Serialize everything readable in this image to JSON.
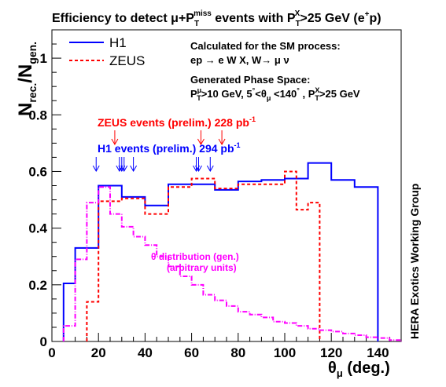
{
  "chart_data": {
    "type": "line",
    "title": "Efficiency to detect μ+Pₜᵐⁱˢˢ events with Pₜˣ>25 GeV (e⁺p)",
    "title_parts": {
      "main": "Efficiency to detect μ+P",
      "sub1": "T",
      "sup1": "miss",
      "mid": " events with P",
      "sub2": "T",
      "sup2": "X",
      "end": ">25 GeV (e",
      "sup3": "+",
      "tail": "p)"
    },
    "xlabel": "θμ (deg.)",
    "xlabel_parts": {
      "main": "θ",
      "sub": "μ",
      "tail": " (deg.)"
    },
    "ylabel": "N rec./N gen.",
    "ylabel_parts": {
      "n1": "N",
      "sub1": "rec.",
      "slash": "/N",
      "sub2": "gen."
    },
    "xlim": [
      0,
      150
    ],
    "ylim": [
      0,
      1.1
    ],
    "x_ticks": [
      0,
      20,
      40,
      60,
      80,
      100,
      120,
      140
    ],
    "y_ticks": [
      0,
      0.2,
      0.4,
      0.6,
      0.8,
      1
    ],
    "x_tick_labels": [
      "0",
      "20",
      "40",
      "60",
      "80",
      "100",
      "120",
      "140"
    ],
    "y_tick_labels": [
      "0",
      "0.2",
      "0.4",
      "0.6",
      "0.8",
      "1"
    ],
    "legend_position": "top-left",
    "series": [
      {
        "name": "H1",
        "color": "#0000ff",
        "style": "solid",
        "edges": [
          5,
          10,
          20,
          30,
          40,
          50,
          60,
          70,
          80,
          90,
          100,
          110,
          120,
          130,
          140
        ],
        "values": [
          0.205,
          0.33,
          0.55,
          0.51,
          0.48,
          0.555,
          0.555,
          0.535,
          0.565,
          0.57,
          0.575,
          0.63,
          0.57,
          0.545
        ]
      },
      {
        "name": "ZEUS",
        "color": "#ff0000",
        "style": "dashed",
        "edges": [
          15,
          20,
          30,
          40,
          50,
          60,
          70,
          80,
          90,
          100,
          105,
          110,
          115
        ],
        "values": [
          0.14,
          0.495,
          0.505,
          0.45,
          0.545,
          0.575,
          0.54,
          0.555,
          0.555,
          0.6,
          0.465,
          0.49
        ]
      },
      {
        "name": "θ distribution (gen.)",
        "color": "#ff00ff",
        "style": "dashdot",
        "edges": [
          5,
          10,
          15,
          20,
          25,
          30,
          35,
          40,
          45,
          50,
          55,
          60,
          65,
          70,
          75,
          80,
          85,
          90,
          95,
          100,
          105,
          110,
          115,
          120,
          125,
          130,
          135,
          140,
          145,
          150
        ],
        "values": [
          0.055,
          0.29,
          0.49,
          0.545,
          0.45,
          0.405,
          0.37,
          0.34,
          0.3,
          0.265,
          0.23,
          0.2,
          0.165,
          0.145,
          0.125,
          0.105,
          0.095,
          0.085,
          0.07,
          0.065,
          0.055,
          0.045,
          0.04,
          0.035,
          0.028,
          0.022,
          0.015,
          0.012,
          0.005
        ]
      }
    ],
    "h1_event_arrows": [
      19,
      29,
      30,
      31,
      35,
      62,
      63,
      68
    ],
    "zeus_event_arrows": [
      27,
      64,
      73
    ],
    "annotations": {
      "sm_line1": "Calculated for the SM process:",
      "sm_line2": "ep → e W X, W→ μ ν",
      "ps_line1": "Generated Phase Space:",
      "ps_line2": "Pₜμ>10 GeV, 5°<θμ<140°, Pₜˣ>25 GeV",
      "zeus_events": "ZEUS events (prelim.) 228 pb⁻¹",
      "h1_events": "H1 events (prelim.) 294 pb⁻¹",
      "theta_dist_1": "θ distribution (gen.)",
      "theta_dist_2": "(arbitrary units)",
      "group": "HERA  Exotics Working Group"
    },
    "annotation_parts": {
      "sm2": {
        "a": "ep → e W X, W→ μ ν"
      },
      "ps2": {
        "p": "P",
        "sup_mu": "μ",
        "sub_t": "T",
        "b": ">10 GeV, 5",
        "deg": "°",
        "c": "<θ",
        "sub_mu": "μ",
        "d": " <140",
        "e": " , P",
        "sup_x": "X",
        "sub_t2": "T",
        "f": ">25 GeV"
      },
      "zeus": {
        "a": "ZEUS events (prelim.) 228 pb",
        "sup": "-1"
      },
      "h1": {
        "a": "H1 events (prelim.) 294 pb",
        "sup": "-1"
      }
    }
  }
}
